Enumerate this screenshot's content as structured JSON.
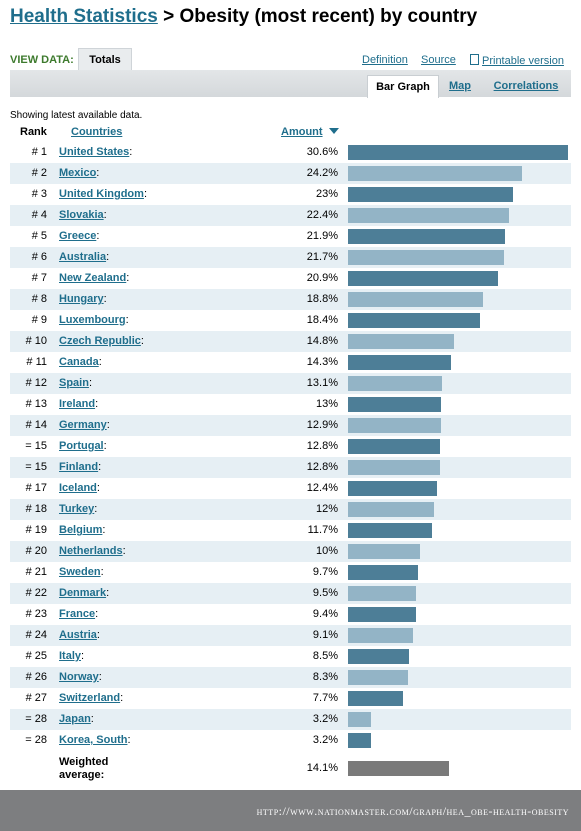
{
  "header": {
    "crumb": "Health Statistics",
    "separator": " > ",
    "title": "Obesity (most recent) by country"
  },
  "view_data": {
    "label": "VIEW DATA:",
    "tab": "Totals"
  },
  "links": {
    "definition": "Definition",
    "source": "Source",
    "printable": "Printable version"
  },
  "subtabs": {
    "bar_graph": "Bar Graph",
    "map": "Map",
    "correlations": "Correlations"
  },
  "note": "Showing latest available data.",
  "table_headers": {
    "rank": "Rank",
    "countries": "Countries",
    "amount": "Amount"
  },
  "colors": {
    "bar_dark": "#4d7e97",
    "bar_light": "#93b4c6",
    "bar_avg": "#7a7a7a",
    "link": "#1f6e8c",
    "row_alt": "#e6eff4"
  },
  "chart_data": {
    "type": "bar",
    "orientation": "horizontal",
    "title": "Obesity (most recent) by country",
    "value_axis_max": 30.6,
    "unit": "%",
    "rows": [
      {
        "rank": "# 1",
        "country": "United States",
        "value": 30.6,
        "label": "30.6%"
      },
      {
        "rank": "# 2",
        "country": "Mexico",
        "value": 24.2,
        "label": "24.2%"
      },
      {
        "rank": "# 3",
        "country": "United Kingdom",
        "value": 23,
        "label": "23%"
      },
      {
        "rank": "# 4",
        "country": "Slovakia",
        "value": 22.4,
        "label": "22.4%"
      },
      {
        "rank": "# 5",
        "country": "Greece",
        "value": 21.9,
        "label": "21.9%"
      },
      {
        "rank": "# 6",
        "country": "Australia",
        "value": 21.7,
        "label": "21.7%"
      },
      {
        "rank": "# 7",
        "country": "New Zealand",
        "value": 20.9,
        "label": "20.9%"
      },
      {
        "rank": "# 8",
        "country": "Hungary",
        "value": 18.8,
        "label": "18.8%"
      },
      {
        "rank": "# 9",
        "country": "Luxembourg",
        "value": 18.4,
        "label": "18.4%"
      },
      {
        "rank": "# 10",
        "country": "Czech Republic",
        "value": 14.8,
        "label": "14.8%"
      },
      {
        "rank": "# 11",
        "country": "Canada",
        "value": 14.3,
        "label": "14.3%"
      },
      {
        "rank": "# 12",
        "country": "Spain",
        "value": 13.1,
        "label": "13.1%"
      },
      {
        "rank": "# 13",
        "country": "Ireland",
        "value": 13,
        "label": "13%"
      },
      {
        "rank": "# 14",
        "country": "Germany",
        "value": 12.9,
        "label": "12.9%"
      },
      {
        "rank": "= 15",
        "country": "Portugal",
        "value": 12.8,
        "label": "12.8%"
      },
      {
        "rank": "= 15",
        "country": "Finland",
        "value": 12.8,
        "label": "12.8%"
      },
      {
        "rank": "# 17",
        "country": "Iceland",
        "value": 12.4,
        "label": "12.4%"
      },
      {
        "rank": "# 18",
        "country": "Turkey",
        "value": 12,
        "label": "12%"
      },
      {
        "rank": "# 19",
        "country": "Belgium",
        "value": 11.7,
        "label": "11.7%"
      },
      {
        "rank": "# 20",
        "country": "Netherlands",
        "value": 10,
        "label": "10%"
      },
      {
        "rank": "# 21",
        "country": "Sweden",
        "value": 9.7,
        "label": "9.7%"
      },
      {
        "rank": "# 22",
        "country": "Denmark",
        "value": 9.5,
        "label": "9.5%"
      },
      {
        "rank": "# 23",
        "country": "France",
        "value": 9.4,
        "label": "9.4%"
      },
      {
        "rank": "# 24",
        "country": "Austria",
        "value": 9.1,
        "label": "9.1%"
      },
      {
        "rank": "# 25",
        "country": "Italy",
        "value": 8.5,
        "label": "8.5%"
      },
      {
        "rank": "# 26",
        "country": "Norway",
        "value": 8.3,
        "label": "8.3%"
      },
      {
        "rank": "# 27",
        "country": "Switzerland",
        "value": 7.7,
        "label": "7.7%"
      },
      {
        "rank": "= 28",
        "country": "Japan",
        "value": 3.2,
        "label": "3.2%"
      },
      {
        "rank": "= 28",
        "country": "Korea, South",
        "value": 3.2,
        "label": "3.2%"
      }
    ],
    "weighted_average": {
      "label": "Weighted average:",
      "value": 14.1,
      "display": "14.1%"
    }
  },
  "footer": {
    "url": "http://www.nationmaster.com/graph/hea_obe-health-obesity"
  }
}
